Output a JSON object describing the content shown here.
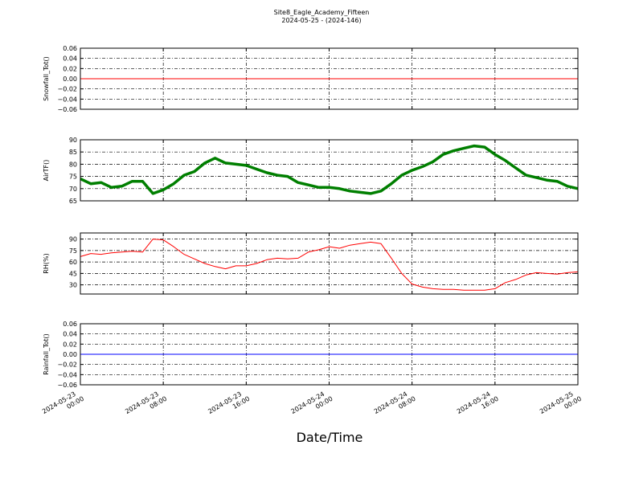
{
  "chart_data": [
    {
      "type": "line",
      "title": "Site8_Eagle_Academy_Fifteen",
      "subtitle": "2024-05-25 - (2024-146)",
      "ylabel": "Snowfall_Tot()",
      "x": [
        "2024-05-23 00:00",
        "2024-05-23 01:00",
        "2024-05-23 02:00",
        "2024-05-23 03:00",
        "2024-05-23 04:00",
        "2024-05-23 05:00",
        "2024-05-23 06:00",
        "2024-05-23 07:00",
        "2024-05-23 08:00",
        "2024-05-23 09:00",
        "2024-05-23 10:00",
        "2024-05-23 11:00",
        "2024-05-23 12:00",
        "2024-05-23 13:00",
        "2024-05-23 14:00",
        "2024-05-23 15:00",
        "2024-05-23 16:00",
        "2024-05-23 17:00",
        "2024-05-23 18:00",
        "2024-05-23 19:00",
        "2024-05-23 20:00",
        "2024-05-23 21:00",
        "2024-05-23 22:00",
        "2024-05-23 23:00",
        "2024-05-24 00:00",
        "2024-05-24 01:00",
        "2024-05-24 02:00",
        "2024-05-24 03:00",
        "2024-05-24 04:00",
        "2024-05-24 05:00",
        "2024-05-24 06:00",
        "2024-05-24 07:00",
        "2024-05-24 08:00",
        "2024-05-24 09:00",
        "2024-05-24 10:00",
        "2024-05-24 11:00",
        "2024-05-24 12:00",
        "2024-05-24 13:00",
        "2024-05-24 14:00",
        "2024-05-24 15:00",
        "2024-05-24 16:00",
        "2024-05-24 17:00",
        "2024-05-24 18:00",
        "2024-05-24 19:00",
        "2024-05-24 20:00",
        "2024-05-24 21:00",
        "2024-05-24 22:00",
        "2024-05-24 23:00",
        "2024-05-25 00:00"
      ],
      "series": [
        {
          "color": "#ff0000",
          "values": [
            0,
            0,
            0,
            0,
            0,
            0,
            0,
            0,
            0,
            0,
            0,
            0,
            0,
            0,
            0,
            0,
            0,
            0,
            0,
            0,
            0,
            0,
            0,
            0,
            0,
            0,
            0,
            0,
            0,
            0,
            0,
            0,
            0,
            0,
            0,
            0,
            0,
            0,
            0,
            0,
            0,
            0,
            0,
            0,
            0,
            0,
            0,
            0,
            0
          ]
        }
      ],
      "ylim": [
        -0.06,
        0.06
      ],
      "yticks": [
        {
          "value": -0.06,
          "label": "−0.06"
        },
        {
          "value": -0.04,
          "label": "−0.04"
        },
        {
          "value": -0.02,
          "label": "−0.02"
        },
        {
          "value": 0,
          "label": "0.00"
        },
        {
          "value": 0.02,
          "label": "0.02"
        },
        {
          "value": 0.04,
          "label": "0.04"
        },
        {
          "value": 0.06,
          "label": "0.06"
        }
      ],
      "grid": true
    },
    {
      "type": "line",
      "ylabel": "AirTF()",
      "series": [
        {
          "color": "#007f00",
          "values": [
            74,
            72,
            72.5,
            70.5,
            71,
            73,
            73,
            68,
            69.5,
            72,
            75.5,
            77,
            80.5,
            82.5,
            80.5,
            80,
            79.5,
            78,
            76.5,
            75.5,
            75,
            72.5,
            71.5,
            70.5,
            70.5,
            70,
            69,
            68.5,
            68,
            69,
            72,
            75.5,
            77.5,
            79,
            81,
            84,
            85.5,
            86.5,
            87.5,
            87,
            84,
            81.5,
            78.5,
            75.5,
            74.5,
            73.5,
            73,
            71,
            70
          ]
        }
      ],
      "ylim": [
        65,
        90
      ],
      "yticks": [
        65,
        70,
        75,
        80,
        85,
        90
      ],
      "grid": true
    },
    {
      "type": "line",
      "ylabel": "RH(%)",
      "series": [
        {
          "color": "#ff0000",
          "values": [
            67,
            71,
            70,
            72,
            73,
            74,
            73,
            90,
            89,
            80,
            70,
            64,
            58,
            54,
            51,
            55,
            55,
            58,
            63,
            65,
            64,
            65,
            73,
            76,
            80,
            78,
            82,
            84,
            86,
            84,
            65,
            45,
            31,
            27,
            25,
            24,
            24,
            23,
            23,
            23,
            25,
            33,
            37,
            43,
            46,
            45,
            44,
            46,
            47
          ]
        }
      ],
      "ylim": [
        18,
        98
      ],
      "yticks": [
        30,
        45,
        60,
        75,
        90
      ],
      "grid": true
    },
    {
      "type": "line",
      "ylabel": "Rainfall_Tot()",
      "xlabel": "Date/Time",
      "series": [
        {
          "color": "#0000ff",
          "values": [
            0,
            0,
            0,
            0,
            0,
            0,
            0,
            0,
            0,
            0,
            0,
            0,
            0,
            0,
            0,
            0,
            0,
            0,
            0,
            0,
            0,
            0,
            0,
            0,
            0,
            0,
            0,
            0,
            0,
            0,
            0,
            0,
            0,
            0,
            0,
            0,
            0,
            0,
            0,
            0,
            0,
            0,
            0,
            0,
            0,
            0,
            0,
            0,
            0
          ]
        }
      ],
      "ylim": [
        -0.06,
        0.06
      ],
      "yticks": [
        {
          "value": -0.06,
          "label": "−0.06"
        },
        {
          "value": -0.04,
          "label": "−0.04"
        },
        {
          "value": -0.02,
          "label": "−0.02"
        },
        {
          "value": 0,
          "label": "0.00"
        },
        {
          "value": 0.02,
          "label": "0.02"
        },
        {
          "value": 0.04,
          "label": "0.04"
        },
        {
          "value": 0.06,
          "label": "0.06"
        }
      ],
      "xlim": [
        "2024-05-23 00:00",
        "2024-05-25 00:00"
      ],
      "xticks": [
        "2024-05-23 00:00",
        "2024-05-23 08:00",
        "2024-05-23 16:00",
        "2024-05-24 00:00",
        "2024-05-24 08:00",
        "2024-05-24 16:00",
        "2024-05-25 00:00"
      ],
      "grid": true
    }
  ]
}
